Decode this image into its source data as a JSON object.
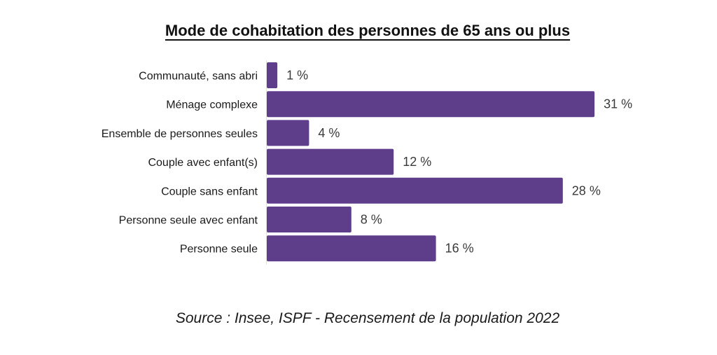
{
  "chart_data": {
    "type": "bar",
    "orientation": "horizontal",
    "title": "Mode de cohabitation des personnes de 65 ans ou plus",
    "categories": [
      "Communauté, sans abri",
      "Ménage complexe",
      "Ensemble de personnes seules",
      "Couple avec enfant(s)",
      "Couple sans enfant",
      "Personne seule avec enfant",
      "Personne seule"
    ],
    "values": [
      1,
      31,
      4,
      12,
      28,
      8,
      16
    ],
    "value_labels": [
      "1 %",
      "31 %",
      "4 %",
      "12 %",
      "28 %",
      "8 %",
      "16 %"
    ],
    "unit": "%",
    "xlim": [
      0,
      31
    ],
    "grid": false,
    "legend": "none",
    "bar_color": "#5e3d8a",
    "source": "Source : Insee, ISPF - Recensement de la population 2022"
  }
}
